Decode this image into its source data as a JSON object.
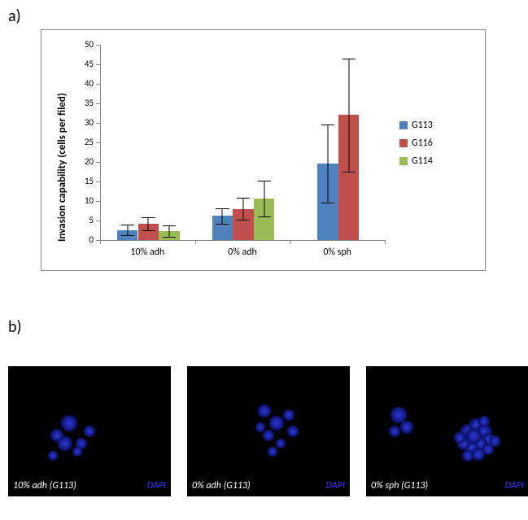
{
  "panels": {
    "a_label": "a)",
    "b_label": "b)"
  },
  "chart": {
    "type": "bar",
    "y_axis_title": "Invasion capability (cells per filed)",
    "ylim": [
      0,
      50
    ],
    "ytick_step": 5,
    "categories": [
      "10% adh",
      "0% adh",
      "0% sph"
    ],
    "series": [
      {
        "name": "G113",
        "color": "#4f81bd"
      },
      {
        "name": "G116",
        "color": "#c0504d"
      },
      {
        "name": "G114",
        "color": "#9bbb59"
      }
    ],
    "values": [
      [
        2.6,
        6.2,
        19.5
      ],
      [
        4.2,
        8.0,
        32.0
      ],
      [
        2.3,
        10.7,
        null
      ]
    ],
    "errors": [
      [
        1.3,
        2.0,
        10.0
      ],
      [
        1.6,
        2.8,
        14.5
      ],
      [
        1.4,
        4.6,
        null
      ]
    ],
    "bar_width_rel": 0.22,
    "axis_color": "#888888",
    "label_fontsize": 12,
    "tick_fontsize": 11,
    "ytitle_fontsize": 13,
    "error_cap_width_rel": 0.14
  },
  "micrographs": {
    "dapi_text": "DAPI",
    "dapi_color": "#3030ff",
    "items": [
      {
        "label": "10% adh (G113)"
      },
      {
        "label": "0% adh (G113)"
      },
      {
        "label": "0% sph (G113)"
      }
    ],
    "bg": "#000000",
    "dot_color_inner": "#2e3ad8",
    "dot_color_outer": "#0a0f66"
  }
}
